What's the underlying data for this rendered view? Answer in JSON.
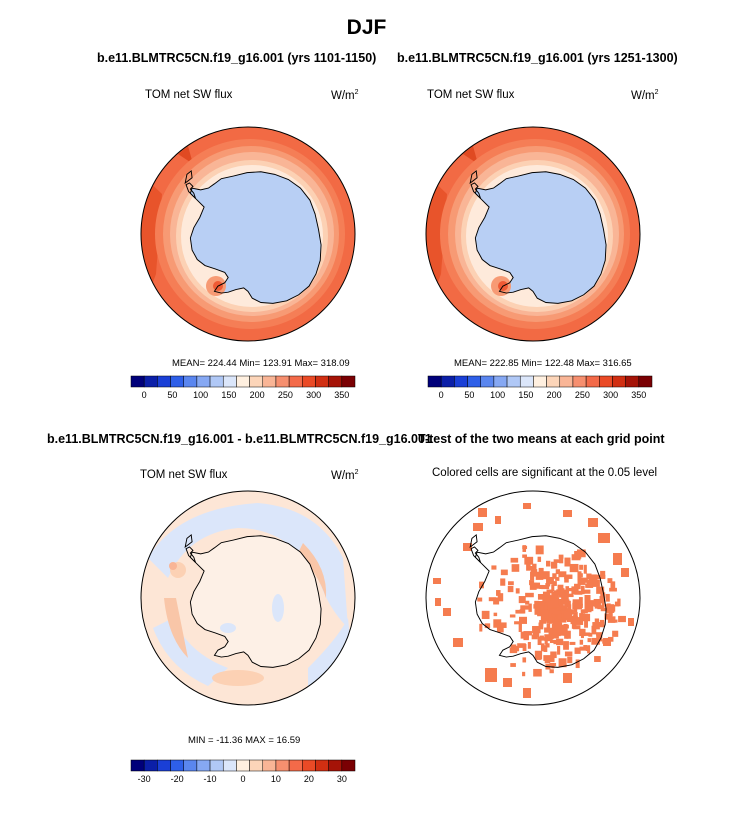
{
  "main_title": "DJF",
  "panels": [
    {
      "title": "b.e11.BLMTRC5CN.f19_g16.001 (yrs 1101-1150)",
      "left_label": "TOM net SW flux",
      "units": "W/m",
      "units_sup": "2",
      "stats": "MEAN= 224.44  Min= 123.91  Max= 318.09"
    },
    {
      "title": "b.e11.BLMTRC5CN.f19_g16.001 (yrs 1251-1300)",
      "left_label": "TOM net SW flux",
      "units": "W/m",
      "units_sup": "2",
      "stats": "MEAN= 222.85  Min= 122.48  Max= 316.65"
    },
    {
      "title": "b.e11.BLMTRC5CN.f19_g16.001 - b.e11.BLMTRC5CN.f19_g16.001",
      "left_label": "TOM net SW flux",
      "units": "W/m",
      "units_sup": "2",
      "stats": "MIN = -11.36 MAX =  16.59"
    },
    {
      "title": "T-test of the two means at each grid point",
      "left_label": "Colored cells are significant at the 0.05 level"
    }
  ],
  "colorbars": {
    "abs": {
      "colors": [
        "#00007a",
        "#0b1fa8",
        "#1a3fd6",
        "#2e5fe8",
        "#5a86ef",
        "#86a8f3",
        "#b0c8f6",
        "#dbe6fa",
        "#fff0e0",
        "#fcd5b9",
        "#f9b596",
        "#f68f6f",
        "#f36a49",
        "#ea4a26",
        "#d12f12",
        "#a51307",
        "#7a0003"
      ],
      "ticks": [
        "0",
        "50",
        "100",
        "150",
        "200",
        "250",
        "300",
        "350"
      ]
    },
    "diff": {
      "colors": [
        "#00007a",
        "#0b1fa8",
        "#1a3fd6",
        "#2e5fe8",
        "#5a86ef",
        "#86a8f3",
        "#b0c8f6",
        "#dbe6fa",
        "#fff0e0",
        "#fcd5b9",
        "#f9b596",
        "#f68f6f",
        "#f36a49",
        "#ea4a26",
        "#d12f12",
        "#a51307",
        "#7a0003"
      ],
      "ticks": [
        "-30",
        "-20",
        "-10",
        "0",
        "10",
        "20",
        "30"
      ]
    }
  },
  "chart_data": [
    {
      "type": "heatmap",
      "title": "b.e11.BLMTRC5CN.f19_g16.001 (yrs 1101-1150)",
      "field": "TOM net SW flux",
      "units": "W/m2",
      "season": "DJF",
      "mean": 224.44,
      "min": 123.91,
      "max": 318.09,
      "levels": [
        0,
        350
      ],
      "colorbar_ticks": [
        0,
        50,
        100,
        150,
        200,
        250,
        300,
        350
      ]
    },
    {
      "type": "heatmap",
      "title": "b.e11.BLMTRC5CN.f19_g16.001 (yrs 1251-1300)",
      "field": "TOM net SW flux",
      "units": "W/m2",
      "season": "DJF",
      "mean": 222.85,
      "min": 122.48,
      "max": 316.65,
      "levels": [
        0,
        350
      ],
      "colorbar_ticks": [
        0,
        50,
        100,
        150,
        200,
        250,
        300,
        350
      ]
    },
    {
      "type": "heatmap",
      "title": "b.e11.BLMTRC5CN.f19_g16.001 - b.e11.BLMTRC5CN.f19_g16.001",
      "field": "TOM net SW flux",
      "units": "W/m2",
      "min": -11.36,
      "max": 16.59,
      "colorbar_ticks": [
        -30,
        -20,
        -10,
        0,
        10,
        20,
        30
      ]
    },
    {
      "type": "heatmap",
      "title": "T-test of the two means at each grid point",
      "note": "Colored cells are significant at the 0.05 level",
      "significance_level": 0.05,
      "significant_color": "#f57c4f"
    }
  ]
}
